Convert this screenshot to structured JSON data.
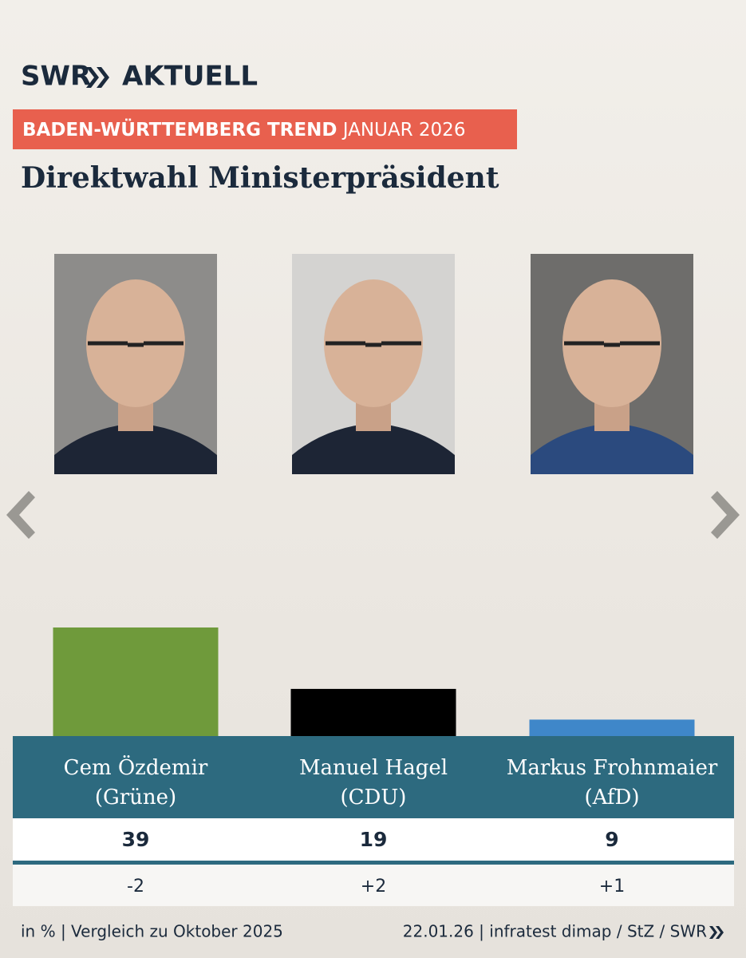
{
  "chart_data": {
    "type": "bar",
    "brand": "SWR",
    "brand_suffix": "AKTUELL",
    "kicker": "BADEN-WÜRTTEMBERG TREND",
    "kicker_date": "JANUAR 2026",
    "title": "Direktwahl Ministerpräsident",
    "categories": [
      "Cem Özdemir",
      "Manuel Hagel",
      "Markus Frohnmaier"
    ],
    "parties": [
      "(Grüne)",
      "(CDU)",
      "(AfD)"
    ],
    "values": [
      39,
      19,
      9
    ],
    "colors": [
      "#6f9a3b",
      "#000000",
      "#3f87c9"
    ],
    "changes": {
      "values": [
        -2,
        2,
        1
      ],
      "value_labels": [
        "-2",
        "+2",
        "+1"
      ]
    },
    "footnote": "in % | Vergleich zu Oktober 2025",
    "source": "22.01.26 | infratest dimap / StZ / SWR"
  }
}
